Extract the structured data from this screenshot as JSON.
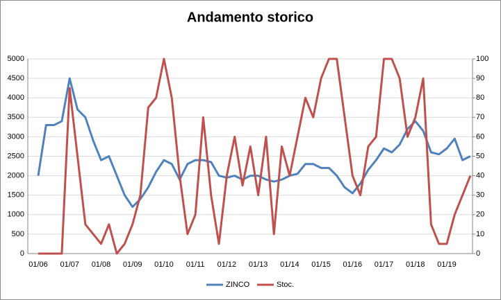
{
  "chart_data": {
    "type": "line",
    "title": "Andamento storico",
    "categories": [
      "01/06",
      null,
      null,
      null,
      "01/07",
      null,
      null,
      null,
      "01/08",
      null,
      null,
      null,
      "01/09",
      null,
      null,
      null,
      "01/10",
      null,
      null,
      null,
      "01/11",
      null,
      null,
      null,
      "01/12",
      null,
      null,
      null,
      "01/13",
      null,
      null,
      null,
      "01/14",
      null,
      null,
      null,
      "01/15",
      null,
      null,
      null,
      "01/16",
      null,
      null,
      null,
      "01/17",
      null,
      null,
      null,
      "01/18",
      null,
      null,
      null,
      "01/19",
      null,
      null,
      null
    ],
    "series": [
      {
        "name": "ZINCO",
        "color": "#4f81bd",
        "values": [
          2000,
          3300,
          3300,
          3400,
          4500,
          3700,
          3500,
          2900,
          2400,
          2500,
          2000,
          1500,
          1200,
          1400,
          1700,
          2100,
          2400,
          2300,
          1900,
          2300,
          2400,
          2400,
          2350,
          2000,
          1950,
          2000,
          1900,
          2000,
          2000,
          1900,
          1850,
          1900,
          2000,
          2050,
          2300,
          2300,
          2200,
          2200,
          2000,
          1700,
          1550,
          1800,
          2150,
          2400,
          2700,
          2600,
          2800,
          3200,
          3400,
          3150,
          2600,
          2550,
          2700,
          2950,
          2400,
          2500
        ]
      },
      {
        "name": "Stoc.",
        "color": "#c0504d",
        "axis": "y2",
        "values": [
          0,
          0,
          0,
          0,
          85,
          50,
          15,
          10,
          5,
          15,
          0,
          5,
          15,
          30,
          75,
          80,
          100,
          80,
          40,
          10,
          20,
          70,
          30,
          5,
          40,
          60,
          35,
          55,
          30,
          60,
          10,
          55,
          40,
          60,
          80,
          70,
          90,
          100,
          100,
          70,
          40,
          30,
          55,
          60,
          100,
          100,
          90,
          60,
          70,
          90,
          15,
          5,
          5,
          20,
          30,
          40
        ]
      }
    ],
    "ylim": [
      0,
      5000
    ],
    "yticks": [
      0,
      500,
      1000,
      1500,
      2000,
      2500,
      3000,
      3500,
      4000,
      4500,
      5000
    ],
    "y2lim": [
      0,
      100
    ],
    "y2ticks": [
      0,
      10,
      20,
      30,
      40,
      50,
      60,
      70,
      80,
      90,
      100
    ],
    "grid": true,
    "legend": "bottom"
  }
}
